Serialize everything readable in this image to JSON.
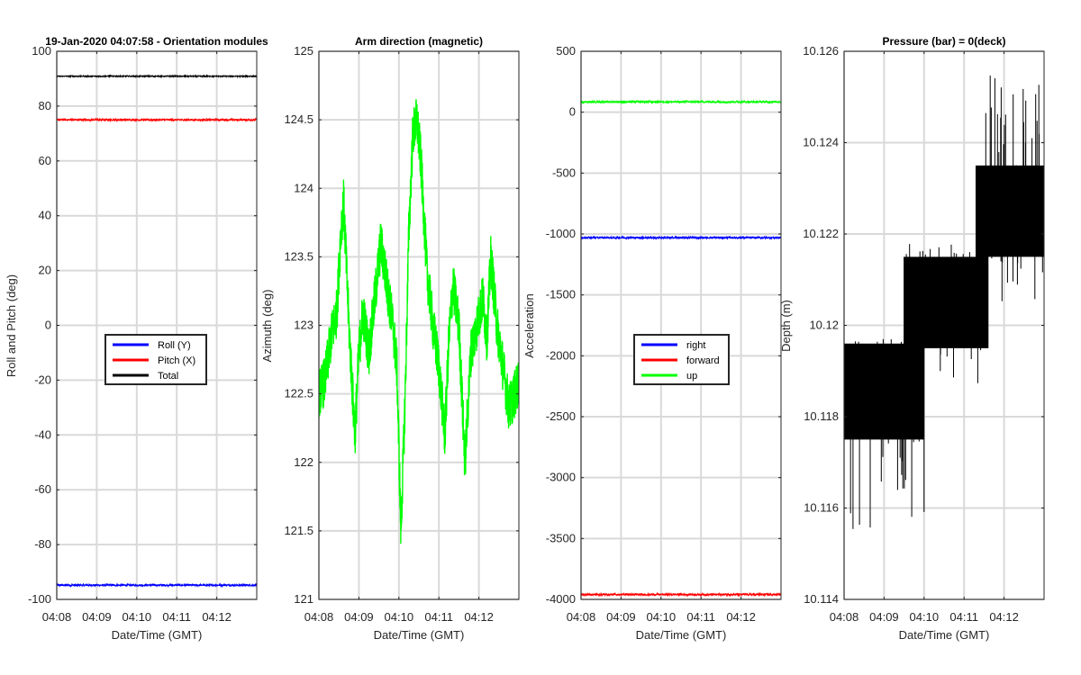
{
  "chart_data": [
    {
      "type": "line",
      "title": "19-Jan-2020 04:07:58 - Orientation modules",
      "xlabel": "Date/Time (GMT)",
      "ylabel": "Roll and Pitch (deg)",
      "xlim": [
        0,
        5
      ],
      "ylim": [
        -100,
        100
      ],
      "xticks": [
        0,
        1,
        2,
        3,
        4
      ],
      "xtick_labels": [
        "04:08",
        "04:09",
        "04:10",
        "04:11",
        "04:12"
      ],
      "yticks": [
        100,
        80,
        60,
        40,
        20,
        0,
        -20,
        -40,
        -60,
        -80,
        -100
      ],
      "ytick_labels": [
        "100",
        "80",
        "60",
        "40",
        "20",
        "0",
        "-20",
        "-40",
        "-60",
        "-80",
        "-100"
      ],
      "grid": true,
      "legend": {
        "placement": "center",
        "entries": [
          "Roll (Y)",
          "Pitch (X)",
          "Total"
        ]
      },
      "series": [
        {
          "name": "Roll (Y)",
          "color": "#0000ff",
          "base": -94.8,
          "noise": 0.35
        },
        {
          "name": "Pitch (X)",
          "color": "#ff0000",
          "base": 75.0,
          "noise": 0.35
        },
        {
          "name": "Total",
          "color": "#000000",
          "base": 90.9,
          "noise": 0.2
        }
      ]
    },
    {
      "type": "line",
      "title": "Arm direction (magnetic)",
      "xlabel": "Date/Time (GMT)",
      "ylabel": "Azimuth (deg)",
      "xlim": [
        0,
        5
      ],
      "ylim": [
        121,
        125
      ],
      "xticks": [
        0,
        1,
        2,
        3,
        4
      ],
      "xtick_labels": [
        "04:08",
        "04:09",
        "04:10",
        "04:11",
        "04:12"
      ],
      "yticks": [
        125,
        124.5,
        124,
        123.5,
        123,
        122.5,
        122,
        121.5,
        121
      ],
      "ytick_labels": [
        "125",
        "124.5",
        "124",
        "123.5",
        "123",
        "122.5",
        "122",
        "121.5",
        "121"
      ],
      "grid": true,
      "series": [
        {
          "name": "azimuth",
          "color": "#00ff00",
          "noise": 0.18,
          "x": [
            0,
            0.15,
            0.3,
            0.45,
            0.55,
            0.62,
            0.75,
            0.9,
            1.0,
            1.1,
            1.25,
            1.4,
            1.55,
            1.7,
            1.85,
            1.95,
            2.05,
            2.15,
            2.25,
            2.35,
            2.45,
            2.55,
            2.7,
            2.85,
            3.0,
            3.15,
            3.25,
            3.35,
            3.5,
            3.65,
            3.8,
            3.95,
            4.1,
            4.2,
            4.3,
            4.45,
            4.6,
            4.75,
            4.9,
            5.0
          ],
          "y": [
            122.5,
            122.6,
            122.9,
            123.1,
            123.7,
            123.9,
            123.0,
            122.2,
            122.8,
            123.1,
            122.8,
            123.2,
            123.6,
            123.3,
            123.0,
            122.7,
            121.5,
            122.4,
            123.7,
            124.4,
            124.5,
            124.2,
            123.4,
            123.0,
            122.7,
            122.2,
            122.9,
            123.3,
            123.0,
            122.0,
            122.8,
            123.0,
            123.2,
            122.9,
            123.5,
            123.0,
            122.7,
            122.4,
            122.5,
            122.6
          ]
        }
      ]
    },
    {
      "type": "line",
      "title": "",
      "xlabel": "Date/Time (GMT)",
      "ylabel": "Acceleration",
      "xlim": [
        0,
        5
      ],
      "ylim": [
        -4000,
        500
      ],
      "xticks": [
        0,
        1,
        2,
        3,
        4
      ],
      "xtick_labels": [
        "04:08",
        "04:09",
        "04:10",
        "04:11",
        "04:12"
      ],
      "yticks": [
        500,
        0,
        -500,
        -1000,
        -1500,
        -2000,
        -2500,
        -3000,
        -3500,
        -4000
      ],
      "ytick_labels": [
        "500",
        "0",
        "-500",
        "-1000",
        "-1500",
        "-2000",
        "-2500",
        "-3000",
        "-3500",
        "-4000"
      ],
      "grid": true,
      "legend": {
        "placement": "center",
        "entries": [
          "right",
          "forward",
          "up"
        ]
      },
      "series": [
        {
          "name": "right",
          "color": "#0000ff",
          "base": -1030,
          "noise": 8
        },
        {
          "name": "forward",
          "color": "#ff0000",
          "base": -3960,
          "noise": 8
        },
        {
          "name": "up",
          "color": "#00ff00",
          "base": 85,
          "noise": 8
        }
      ]
    },
    {
      "type": "line",
      "title": "Pressure (bar) = 0(deck)",
      "xlabel": "Date/Time (GMT)",
      "ylabel": "Depth (m)",
      "xlim": [
        0,
        5
      ],
      "ylim": [
        10.114,
        10.126
      ],
      "xticks": [
        0,
        1,
        2,
        3,
        4
      ],
      "xtick_labels": [
        "04:08",
        "04:09",
        "04:10",
        "04:11",
        "04:12"
      ],
      "yticks": [
        10.126,
        10.124,
        10.122,
        10.12,
        10.118,
        10.116,
        10.114
      ],
      "ytick_labels": [
        "10.126",
        "10.124",
        "10.122",
        "10.12",
        "10.118",
        "10.116",
        "10.114"
      ],
      "grid": true,
      "series": [
        {
          "name": "depth",
          "color": "#000000",
          "bands": [
            {
              "x0": 0.0,
              "x1": 2.0,
              "low": 10.1175,
              "high": 10.1196,
              "spikes_low": 10.1155,
              "spikes_high": 10.1197
            },
            {
              "x0": 1.5,
              "x1": 3.6,
              "low": 10.1195,
              "high": 10.1215,
              "spikes_low": 10.1185,
              "spikes_high": 10.1218
            },
            {
              "x0": 3.3,
              "x1": 5.0,
              "low": 10.1215,
              "high": 10.1235,
              "spikes_low": 10.1205,
              "spikes_high": 10.1255
            }
          ]
        }
      ]
    }
  ]
}
